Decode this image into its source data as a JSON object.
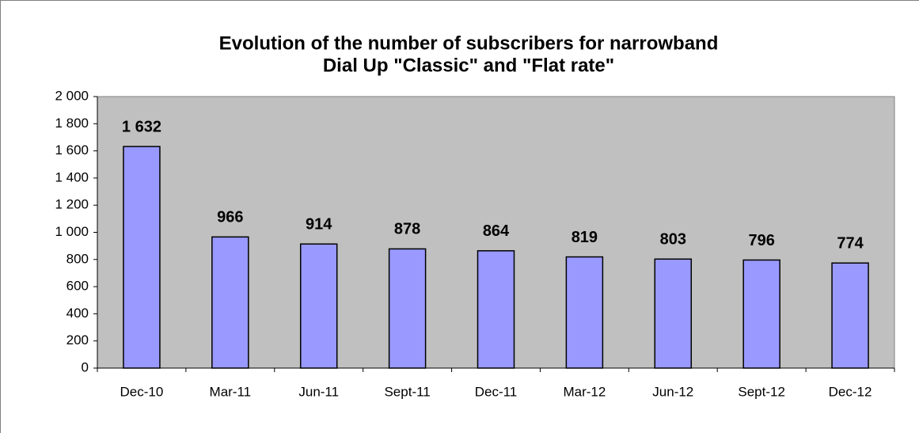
{
  "chart_data": {
    "type": "bar",
    "title": [
      "Evolution of the number of subscribers for narrowband",
      "Dial Up \"Classic\" and \"Flat rate\""
    ],
    "categories": [
      "Dec-10",
      "Mar-11",
      "Jun-11",
      "Sept-11",
      "Dec-11",
      "Mar-12",
      "Jun-12",
      "Sept-12",
      "Dec-12"
    ],
    "values": [
      1632,
      966,
      914,
      878,
      864,
      819,
      803,
      796,
      774
    ],
    "value_labels": [
      "1 632",
      "966",
      "914",
      "878",
      "864",
      "819",
      "803",
      "796",
      "774"
    ],
    "color": "#9999ff",
    "ylim": [
      0,
      2000
    ],
    "yticks": [
      0,
      200,
      400,
      600,
      800,
      {
        "value": 1000,
        "label": "1 000"
      },
      {
        "value": 1200,
        "label": "1 200"
      },
      {
        "value": 1400,
        "label": "1 400"
      },
      {
        "value": 1600,
        "label": "1 600"
      },
      {
        "value": 1800,
        "label": "1 800"
      },
      {
        "value": 2000,
        "label": "2 000"
      }
    ],
    "grid": false
  }
}
